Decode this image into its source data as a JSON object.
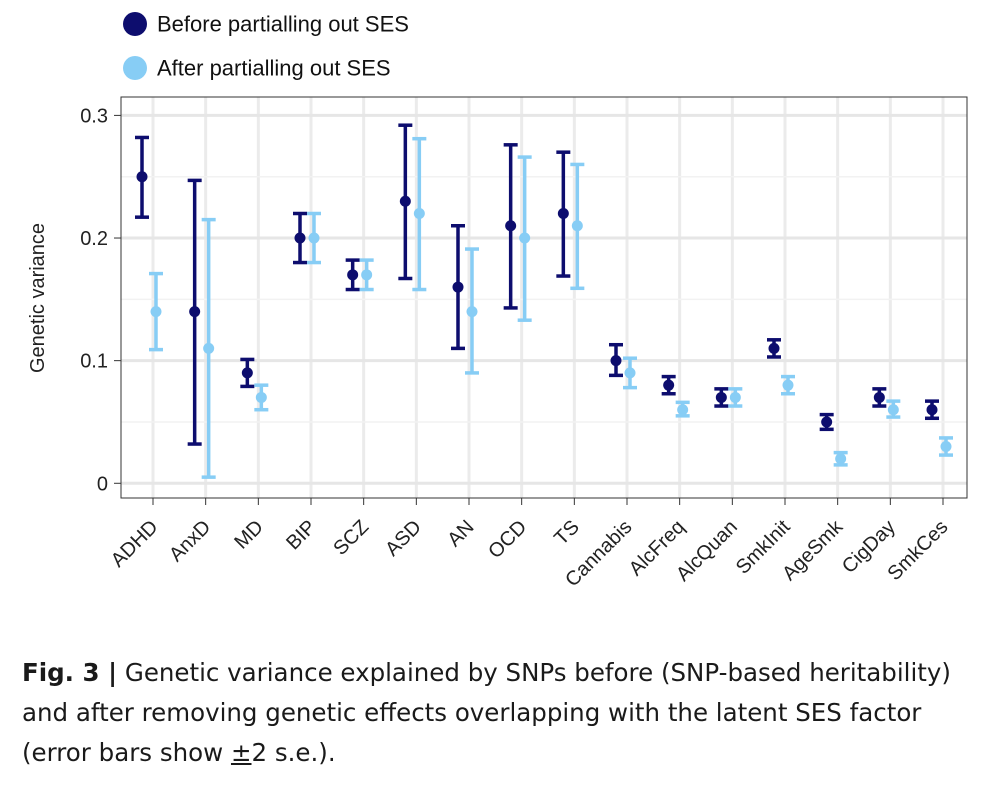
{
  "chart_data": {
    "type": "scatter",
    "ylabel": "Genetic variance",
    "ylim": [
      -0.012,
      0.315
    ],
    "yticks": [
      0,
      0.1,
      0.2,
      0.3
    ],
    "ytick_labels": [
      "0",
      "0.1",
      "0.2",
      "0.3"
    ],
    "categories": [
      "ADHD",
      "AnxD",
      "MD",
      "BIP",
      "SCZ",
      "ASD",
      "AN",
      "OCD",
      "TS",
      "Cannabis",
      "AlcFreq",
      "AlcQuan",
      "SmkInit",
      "AgeSmk",
      "CigDay",
      "SmkCes"
    ],
    "grid": true,
    "legend_position": "top-left",
    "series": [
      {
        "name": "Before partialling out SES",
        "color": "#0d0d6e",
        "values": [
          0.25,
          0.14,
          0.09,
          0.2,
          0.17,
          0.23,
          0.16,
          0.21,
          0.22,
          0.1,
          0.08,
          0.07,
          0.11,
          0.05,
          0.07,
          0.06
        ],
        "lower": [
          0.217,
          0.032,
          0.079,
          0.18,
          0.158,
          0.167,
          0.11,
          0.143,
          0.169,
          0.088,
          0.073,
          0.063,
          0.103,
          0.044,
          0.063,
          0.053
        ],
        "upper": [
          0.282,
          0.247,
          0.101,
          0.22,
          0.182,
          0.292,
          0.21,
          0.276,
          0.27,
          0.113,
          0.087,
          0.077,
          0.117,
          0.056,
          0.077,
          0.067
        ]
      },
      {
        "name": "After partialling out SES",
        "color": "#87cdf5",
        "values": [
          0.14,
          0.11,
          0.07,
          0.2,
          0.17,
          0.22,
          0.14,
          0.2,
          0.21,
          0.09,
          0.06,
          0.07,
          0.08,
          0.02,
          0.06,
          0.03
        ],
        "lower": [
          0.109,
          0.005,
          0.06,
          0.18,
          0.158,
          0.158,
          0.09,
          0.133,
          0.159,
          0.078,
          0.055,
          0.063,
          0.073,
          0.015,
          0.054,
          0.023
        ],
        "upper": [
          0.171,
          0.215,
          0.08,
          0.22,
          0.182,
          0.281,
          0.191,
          0.266,
          0.26,
          0.102,
          0.066,
          0.077,
          0.087,
          0.025,
          0.067,
          0.037
        ]
      }
    ]
  },
  "caption": {
    "label": "Fig. 3 |",
    "text_1": " Genetic variance explained by SNPs before (SNP-based heritability) and after removing genetic effects overlapping with the latent SES factor (error bars show ",
    "pm": "±",
    "text_2": "2 s.e.)."
  }
}
